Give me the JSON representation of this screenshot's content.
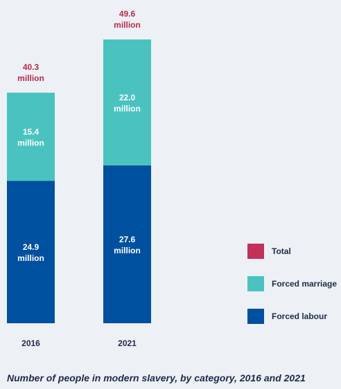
{
  "chart_data": {
    "type": "bar",
    "stacked": true,
    "categories": [
      "2016",
      "2021"
    ],
    "unit": "million",
    "series": [
      {
        "name": "Forced labour",
        "values": [
          24.9,
          27.6
        ],
        "color": "#0050a0"
      },
      {
        "name": "Forced marriage",
        "values": [
          15.4,
          22.0
        ],
        "color": "#4ac3c0"
      }
    ],
    "totals": [
      40.3,
      49.6
    ],
    "total_legend": {
      "name": "Total",
      "color": "#c1315a"
    },
    "legend": [
      "Total",
      "Forced marriage",
      "Forced labour"
    ],
    "legend_position": "bottom-right",
    "ylim": [
      0,
      49.6
    ],
    "grid": false
  },
  "caption": "Number of people in modern slavery, by category, 2016 and 2021",
  "colors": {
    "background": "#edf1f5",
    "total_text": "#b8294e",
    "text": "#1e2a4a"
  }
}
